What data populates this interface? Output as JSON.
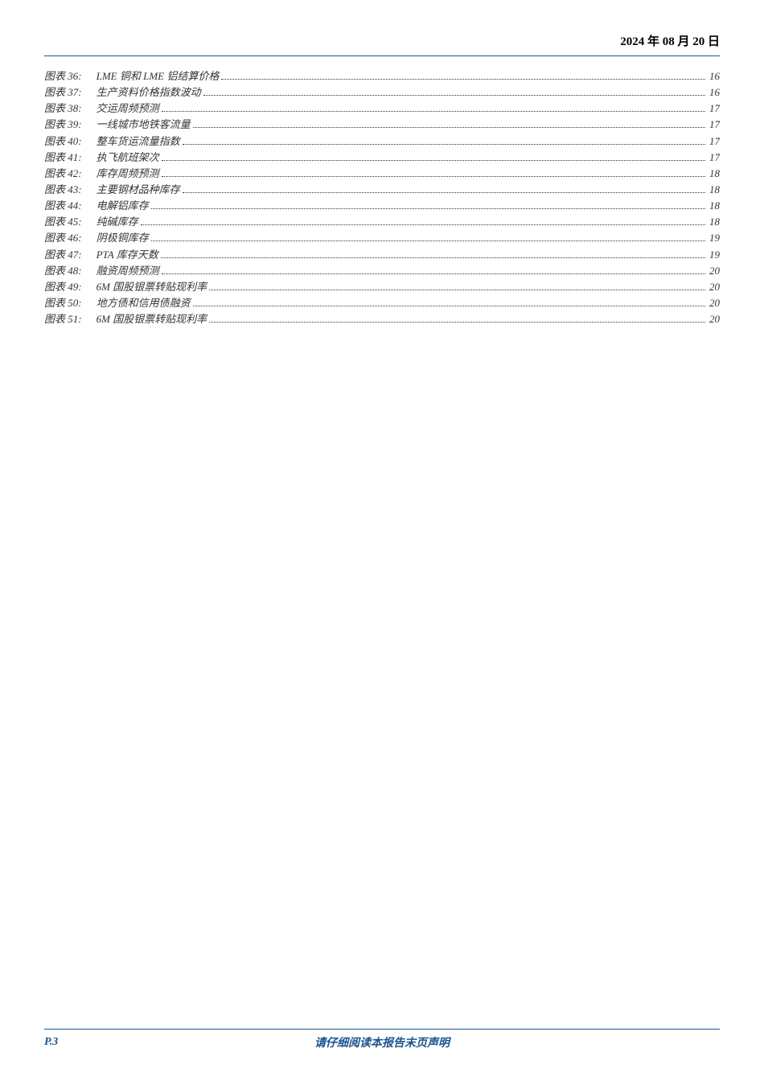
{
  "header": {
    "date": "2024 年 08 月 20 日"
  },
  "toc": {
    "entries": [
      {
        "label": "图表 36:",
        "title": "LME 铜和 LME 铝结算价格",
        "page": "16"
      },
      {
        "label": "图表 37:",
        "title": "生产资料价格指数波动",
        "page": "16"
      },
      {
        "label": "图表 38:",
        "title": "交运周频预测",
        "page": "17"
      },
      {
        "label": "图表 39:",
        "title": "一线城市地铁客流量",
        "page": "17"
      },
      {
        "label": "图表 40:",
        "title": "整车货运流量指数",
        "page": "17"
      },
      {
        "label": "图表 41:",
        "title": "执飞航班架次",
        "page": "17"
      },
      {
        "label": "图表 42:",
        "title": "库存周频预测",
        "page": "18"
      },
      {
        "label": "图表 43:",
        "title": "主要钢材品种库存",
        "page": "18"
      },
      {
        "label": "图表 44:",
        "title": "电解铝库存",
        "page": "18"
      },
      {
        "label": "图表 45:",
        "title": "纯碱库存",
        "page": "18"
      },
      {
        "label": "图表 46:",
        "title": "阴极铜库存",
        "page": "19"
      },
      {
        "label": "图表 47:",
        "title": "PTA 库存天数",
        "page": "19"
      },
      {
        "label": "图表 48:",
        "title": "融资周频预测",
        "page": "20"
      },
      {
        "label": "图表 49:",
        "title": "6M 国股银票转贴现利率",
        "page": "20"
      },
      {
        "label": "图表 50:",
        "title": "地方债和信用债融资",
        "page": "20"
      },
      {
        "label": "图表 51:",
        "title": "6M 国股银票转贴现利率",
        "page": "20"
      }
    ]
  },
  "footer": {
    "page_number": "P.3",
    "disclaimer": "请仔细阅读本报告末页声明"
  }
}
